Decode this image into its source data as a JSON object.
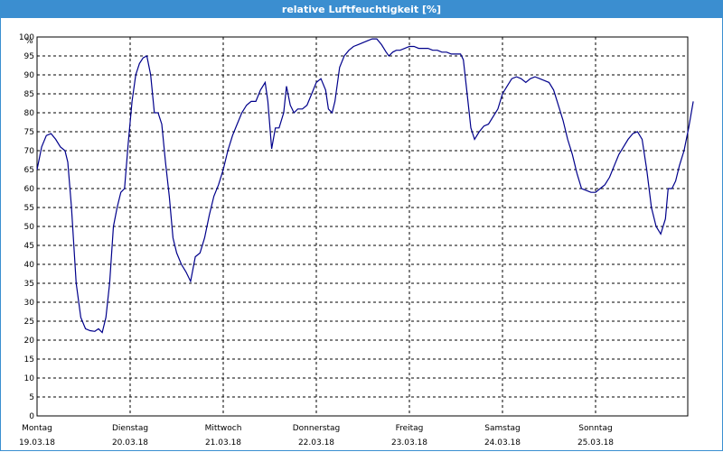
{
  "window": {
    "title": "relative Luftfeuchtigkeit [%]"
  },
  "colors": {
    "title_bar": "#3b8ed0",
    "line": "#00008b",
    "grid": "#000000"
  },
  "chart_data": {
    "type": "line",
    "title": "relative Luftfeuchtigkeit [%]",
    "ylabel": "%",
    "ylim": [
      0,
      100
    ],
    "xlim": [
      0,
      7
    ],
    "grid": true,
    "y_ticks": [
      "0",
      "5",
      "10",
      "15",
      "20",
      "25",
      "30",
      "35",
      "40",
      "45",
      "50",
      "55",
      "60",
      "65",
      "70",
      "75",
      "80",
      "85",
      "90",
      "95",
      "100"
    ],
    "x_ticks": [
      {
        "day": "Montag",
        "date": "19.03.18"
      },
      {
        "day": "Dienstag",
        "date": "20.03.18"
      },
      {
        "day": "Mittwoch",
        "date": "21.03.18"
      },
      {
        "day": "Donnerstag",
        "date": "22.03.18"
      },
      {
        "day": "Freitag",
        "date": "23.03.18"
      },
      {
        "day": "Samstag",
        "date": "24.03.18"
      },
      {
        "day": "Sonntag",
        "date": "25.03.18"
      }
    ],
    "series": [
      {
        "points": [
          [
            0.0,
            65
          ],
          [
            0.05,
            71
          ],
          [
            0.1,
            74
          ],
          [
            0.15,
            74.5
          ],
          [
            0.2,
            73
          ],
          [
            0.25,
            71
          ],
          [
            0.3,
            70
          ],
          [
            0.33,
            67
          ],
          [
            0.37,
            55
          ],
          [
            0.42,
            35
          ],
          [
            0.47,
            26
          ],
          [
            0.52,
            23
          ],
          [
            0.57,
            22.5
          ],
          [
            0.62,
            22.3
          ],
          [
            0.66,
            23
          ],
          [
            0.7,
            22
          ],
          [
            0.74,
            26
          ],
          [
            0.78,
            35
          ],
          [
            0.82,
            50
          ],
          [
            0.86,
            55
          ],
          [
            0.9,
            59
          ],
          [
            0.94,
            60
          ],
          [
            0.98,
            72
          ],
          [
            1.02,
            83
          ],
          [
            1.06,
            90
          ],
          [
            1.1,
            93
          ],
          [
            1.14,
            94.5
          ],
          [
            1.18,
            95
          ],
          [
            1.22,
            90
          ],
          [
            1.26,
            80
          ],
          [
            1.3,
            80
          ],
          [
            1.34,
            77
          ],
          [
            1.38,
            67
          ],
          [
            1.42,
            58
          ],
          [
            1.46,
            47
          ],
          [
            1.5,
            43
          ],
          [
            1.55,
            40
          ],
          [
            1.6,
            38
          ],
          [
            1.65,
            35.5
          ],
          [
            1.7,
            42
          ],
          [
            1.75,
            43
          ],
          [
            1.8,
            47
          ],
          [
            1.85,
            53
          ],
          [
            1.9,
            58
          ],
          [
            1.95,
            61
          ],
          [
            2.0,
            65
          ],
          [
            2.05,
            70
          ],
          [
            2.1,
            74
          ],
          [
            2.15,
            77
          ],
          [
            2.2,
            80
          ],
          [
            2.25,
            82
          ],
          [
            2.3,
            83
          ],
          [
            2.35,
            83
          ],
          [
            2.4,
            86
          ],
          [
            2.45,
            88
          ],
          [
            2.48,
            83
          ],
          [
            2.52,
            70.5
          ],
          [
            2.56,
            76
          ],
          [
            2.6,
            76
          ],
          [
            2.65,
            80
          ],
          [
            2.68,
            87
          ],
          [
            2.72,
            82
          ],
          [
            2.76,
            80
          ],
          [
            2.8,
            81
          ],
          [
            2.85,
            81
          ],
          [
            2.9,
            82
          ],
          [
            2.95,
            85
          ],
          [
            3.0,
            88
          ],
          [
            3.05,
            89
          ],
          [
            3.1,
            86
          ],
          [
            3.13,
            81
          ],
          [
            3.17,
            80
          ],
          [
            3.2,
            83
          ],
          [
            3.25,
            92
          ],
          [
            3.3,
            95
          ],
          [
            3.35,
            96.5
          ],
          [
            3.4,
            97.5
          ],
          [
            3.45,
            98
          ],
          [
            3.5,
            98.5
          ],
          [
            3.55,
            99
          ],
          [
            3.6,
            99.5
          ],
          [
            3.65,
            99.5
          ],
          [
            3.7,
            98
          ],
          [
            3.75,
            96
          ],
          [
            3.78,
            95
          ],
          [
            3.82,
            96
          ],
          [
            3.86,
            96.5
          ],
          [
            3.9,
            96.5
          ],
          [
            3.95,
            97
          ],
          [
            4.0,
            97.5
          ],
          [
            4.05,
            97.5
          ],
          [
            4.1,
            97
          ],
          [
            4.15,
            97
          ],
          [
            4.2,
            97
          ],
          [
            4.25,
            96.5
          ],
          [
            4.3,
            96.5
          ],
          [
            4.35,
            96
          ],
          [
            4.4,
            96
          ],
          [
            4.45,
            95.5
          ],
          [
            4.5,
            95.5
          ],
          [
            4.55,
            95.5
          ],
          [
            4.58,
            94
          ],
          [
            4.62,
            85
          ],
          [
            4.66,
            76
          ],
          [
            4.7,
            73
          ],
          [
            4.75,
            75
          ],
          [
            4.8,
            76.5
          ],
          [
            4.85,
            77
          ],
          [
            4.9,
            79
          ],
          [
            4.95,
            81
          ],
          [
            5.0,
            85
          ],
          [
            5.05,
            87
          ],
          [
            5.1,
            89
          ],
          [
            5.15,
            89.5
          ],
          [
            5.2,
            89
          ],
          [
            5.25,
            88
          ],
          [
            5.3,
            89
          ],
          [
            5.35,
            89.5
          ],
          [
            5.4,
            89
          ],
          [
            5.45,
            88.5
          ],
          [
            5.5,
            88
          ],
          [
            5.55,
            86
          ],
          [
            5.6,
            82
          ],
          [
            5.65,
            78
          ],
          [
            5.7,
            73
          ],
          [
            5.75,
            69
          ],
          [
            5.8,
            64
          ],
          [
            5.85,
            60
          ],
          [
            5.9,
            59.5
          ],
          [
            5.95,
            59
          ],
          [
            6.0,
            59
          ],
          [
            6.05,
            60
          ],
          [
            6.1,
            61
          ],
          [
            6.15,
            63
          ],
          [
            6.2,
            66
          ],
          [
            6.25,
            69
          ],
          [
            6.3,
            71
          ],
          [
            6.35,
            73
          ],
          [
            6.4,
            74.5
          ],
          [
            6.45,
            75
          ],
          [
            6.5,
            73
          ],
          [
            6.55,
            65
          ],
          [
            6.6,
            55
          ],
          [
            6.65,
            50
          ],
          [
            6.7,
            48
          ],
          [
            6.75,
            52
          ],
          [
            6.78,
            60
          ],
          [
            6.82,
            60
          ],
          [
            6.86,
            62
          ],
          [
            6.9,
            66
          ],
          [
            6.95,
            70
          ],
          [
            7.0,
            76
          ],
          [
            7.05,
            83
          ]
        ]
      }
    ]
  }
}
